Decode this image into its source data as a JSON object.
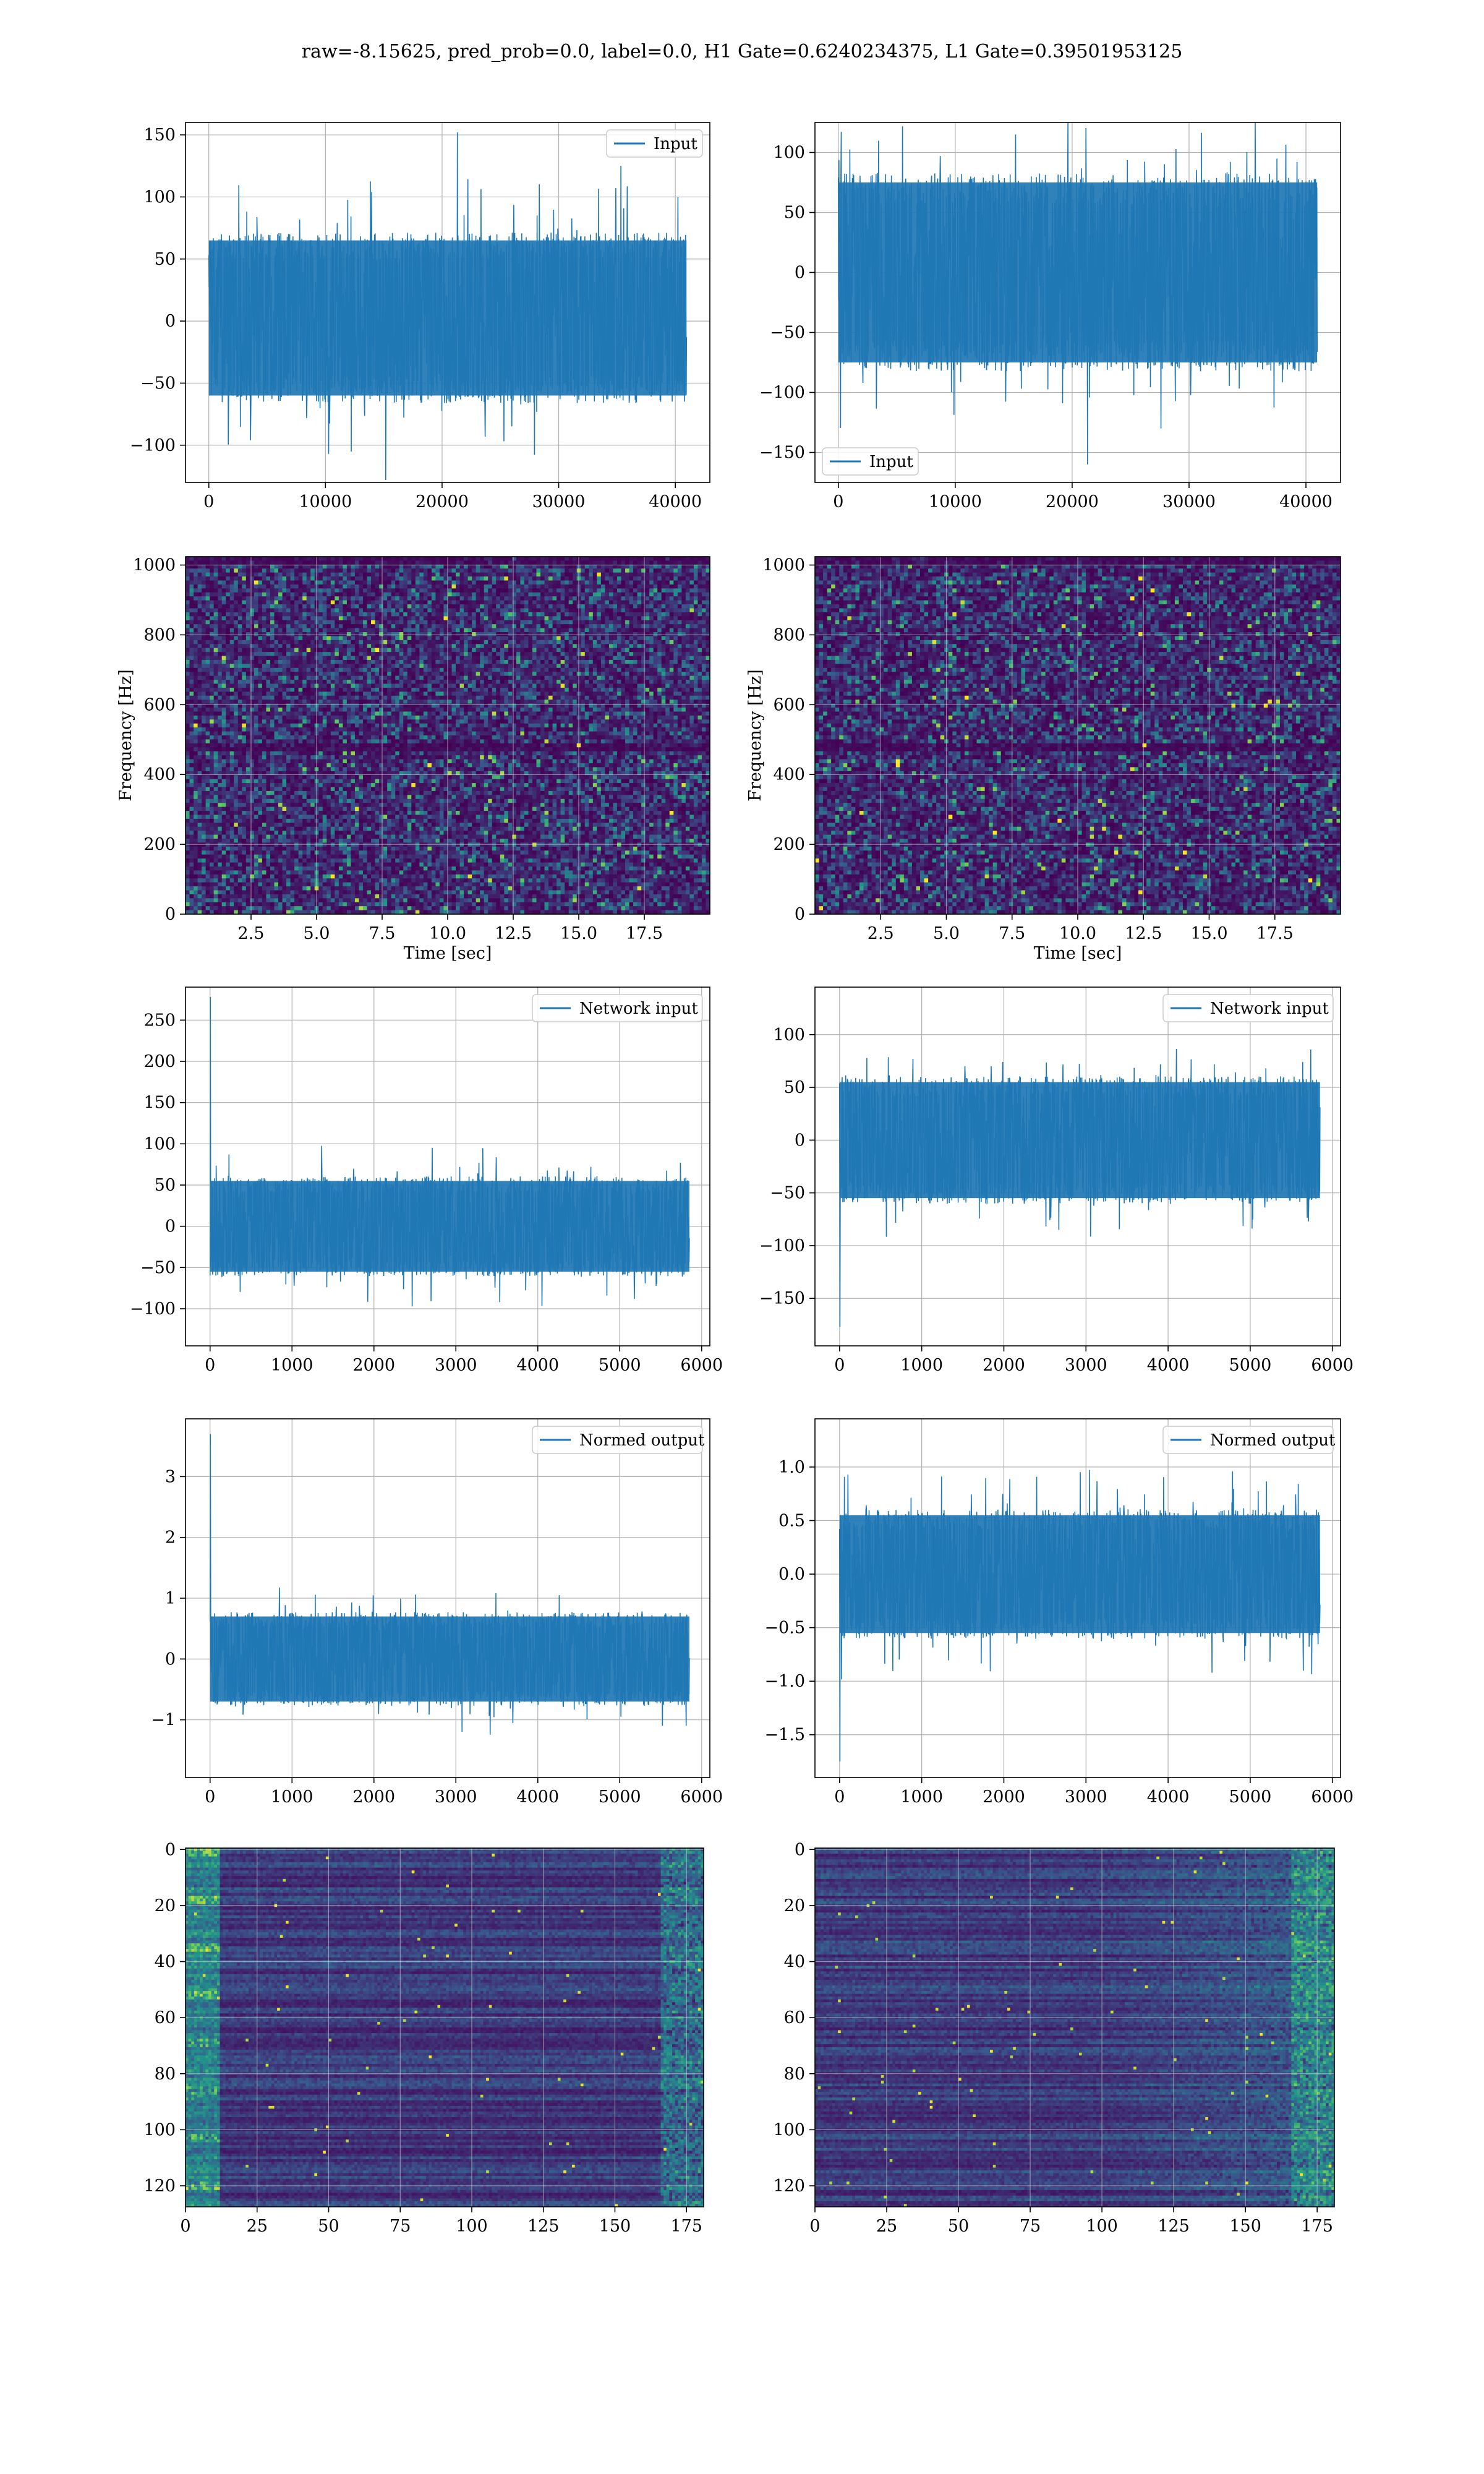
{
  "suptitle": "raw=-8.15625, pred_prob=0.0, label=0.0, H1 Gate=0.6240234375, L1 Gate=0.39501953125",
  "colors": {
    "line": "#1f77b4",
    "grid": "#b0b0b0",
    "viridis_low": "#440154",
    "viridis_mid": "#21918c",
    "viridis_high": "#fde725"
  },
  "chart_data": [
    {
      "type": "line",
      "id": "h1-input",
      "legend": "Input",
      "legend_loc": "upper right",
      "xlim": [
        -2000,
        42960
      ],
      "ylim": [
        -130,
        160
      ],
      "xticks": [
        0,
        10000,
        20000,
        30000,
        40000
      ],
      "yticks": [
        -100,
        -50,
        0,
        50,
        100,
        150
      ],
      "x_range": [
        0,
        40960
      ],
      "band": [
        -60,
        65
      ],
      "spike_max": 152,
      "spike_min": -128,
      "grid": true,
      "xlabel": "",
      "ylabel": ""
    },
    {
      "type": "line",
      "id": "l1-input",
      "legend": "Input",
      "legend_loc": "lower left",
      "xlim": [
        -2000,
        42960
      ],
      "ylim": [
        -175,
        125
      ],
      "xticks": [
        0,
        10000,
        20000,
        30000,
        40000
      ],
      "yticks": [
        -150,
        -100,
        -50,
        0,
        50,
        100
      ],
      "x_range": [
        0,
        40960
      ],
      "band": [
        -75,
        75
      ],
      "spike_max": 115,
      "spike_min": -160,
      "grid": true,
      "xlabel": "",
      "ylabel": ""
    },
    {
      "type": "heatmap",
      "id": "h1-spectrogram",
      "xlim": [
        0,
        20
      ],
      "ylim": [
        0,
        1024
      ],
      "xticks": [
        2.5,
        5.0,
        7.5,
        10.0,
        12.5,
        15.0,
        17.5
      ],
      "yticks": [
        0,
        200,
        400,
        600,
        800,
        1000
      ],
      "xlabel": "Time [sec]",
      "ylabel": "Frequency [Hz]",
      "colormap": "viridis",
      "grid": true
    },
    {
      "type": "heatmap",
      "id": "l1-spectrogram",
      "xlim": [
        0,
        20
      ],
      "ylim": [
        0,
        1024
      ],
      "xticks": [
        2.5,
        5.0,
        7.5,
        10.0,
        12.5,
        15.0,
        17.5
      ],
      "yticks": [
        0,
        200,
        400,
        600,
        800,
        1000
      ],
      "xlabel": "Time [sec]",
      "ylabel": "Frequency [Hz]",
      "colormap": "viridis",
      "grid": true
    },
    {
      "type": "line",
      "id": "h1-network-input",
      "legend": "Network input",
      "legend_loc": "upper right",
      "xlim": [
        -300,
        6100
      ],
      "ylim": [
        -145,
        290
      ],
      "xticks": [
        0,
        1000,
        2000,
        3000,
        4000,
        5000,
        6000
      ],
      "yticks": [
        -100,
        -50,
        0,
        50,
        100,
        150,
        200,
        250
      ],
      "x_range": [
        0,
        5850
      ],
      "band": [
        -55,
        55
      ],
      "spike_max": 278,
      "spike_min": -125,
      "grid": true,
      "xlabel": "",
      "ylabel": ""
    },
    {
      "type": "line",
      "id": "l1-network-input",
      "legend": "Network input",
      "legend_loc": "upper right",
      "xlim": [
        -300,
        6100
      ],
      "ylim": [
        -195,
        145
      ],
      "xticks": [
        0,
        1000,
        2000,
        3000,
        4000,
        5000,
        6000
      ],
      "yticks": [
        -150,
        -100,
        -50,
        0,
        50,
        100
      ],
      "x_range": [
        0,
        5850
      ],
      "band": [
        -55,
        55
      ],
      "spike_max": 132,
      "spike_min": -177,
      "grid": true,
      "xlabel": "",
      "ylabel": ""
    },
    {
      "type": "line",
      "id": "h1-normed-output",
      "legend": "Normed output",
      "legend_loc": "upper right",
      "xlim": [
        -300,
        6100
      ],
      "ylim": [
        -1.95,
        3.95
      ],
      "xticks": [
        0,
        1000,
        2000,
        3000,
        4000,
        5000,
        6000
      ],
      "yticks": [
        -1,
        0,
        1,
        2,
        3
      ],
      "x_range": [
        0,
        5850
      ],
      "band": [
        -0.7,
        0.7
      ],
      "spike_max": 3.7,
      "spike_min": -1.65,
      "grid": true,
      "xlabel": "",
      "ylabel": ""
    },
    {
      "type": "line",
      "id": "l1-normed-output",
      "legend": "Normed output",
      "legend_loc": "upper right",
      "xlim": [
        -300,
        6100
      ],
      "ylim": [
        -1.9,
        1.45
      ],
      "xticks": [
        0,
        1000,
        2000,
        3000,
        4000,
        5000,
        6000
      ],
      "yticks": [
        -1.5,
        -1.0,
        -0.5,
        0.0,
        0.5,
        1.0
      ],
      "x_range": [
        0,
        5850
      ],
      "band": [
        -0.55,
        0.55
      ],
      "spike_max": 1.3,
      "spike_min": -1.75,
      "grid": true,
      "xlabel": "",
      "ylabel": ""
    },
    {
      "type": "heatmap",
      "id": "h1-feature-map",
      "xlim": [
        0,
        181
      ],
      "ylim": [
        127.5,
        -0.5
      ],
      "xticks": [
        0,
        25,
        50,
        75,
        100,
        125,
        150,
        175
      ],
      "yticks": [
        0,
        20,
        40,
        60,
        80,
        100,
        120
      ],
      "colormap": "viridis",
      "grid": true,
      "xlabel": "",
      "ylabel": ""
    },
    {
      "type": "heatmap",
      "id": "l1-feature-map",
      "xlim": [
        0,
        181
      ],
      "ylim": [
        127.5,
        -0.5
      ],
      "xticks": [
        0,
        25,
        50,
        75,
        100,
        125,
        150,
        175
      ],
      "yticks": [
        0,
        20,
        40,
        60,
        80,
        100,
        120
      ],
      "colormap": "viridis",
      "grid": true,
      "xlabel": "",
      "ylabel": ""
    }
  ]
}
